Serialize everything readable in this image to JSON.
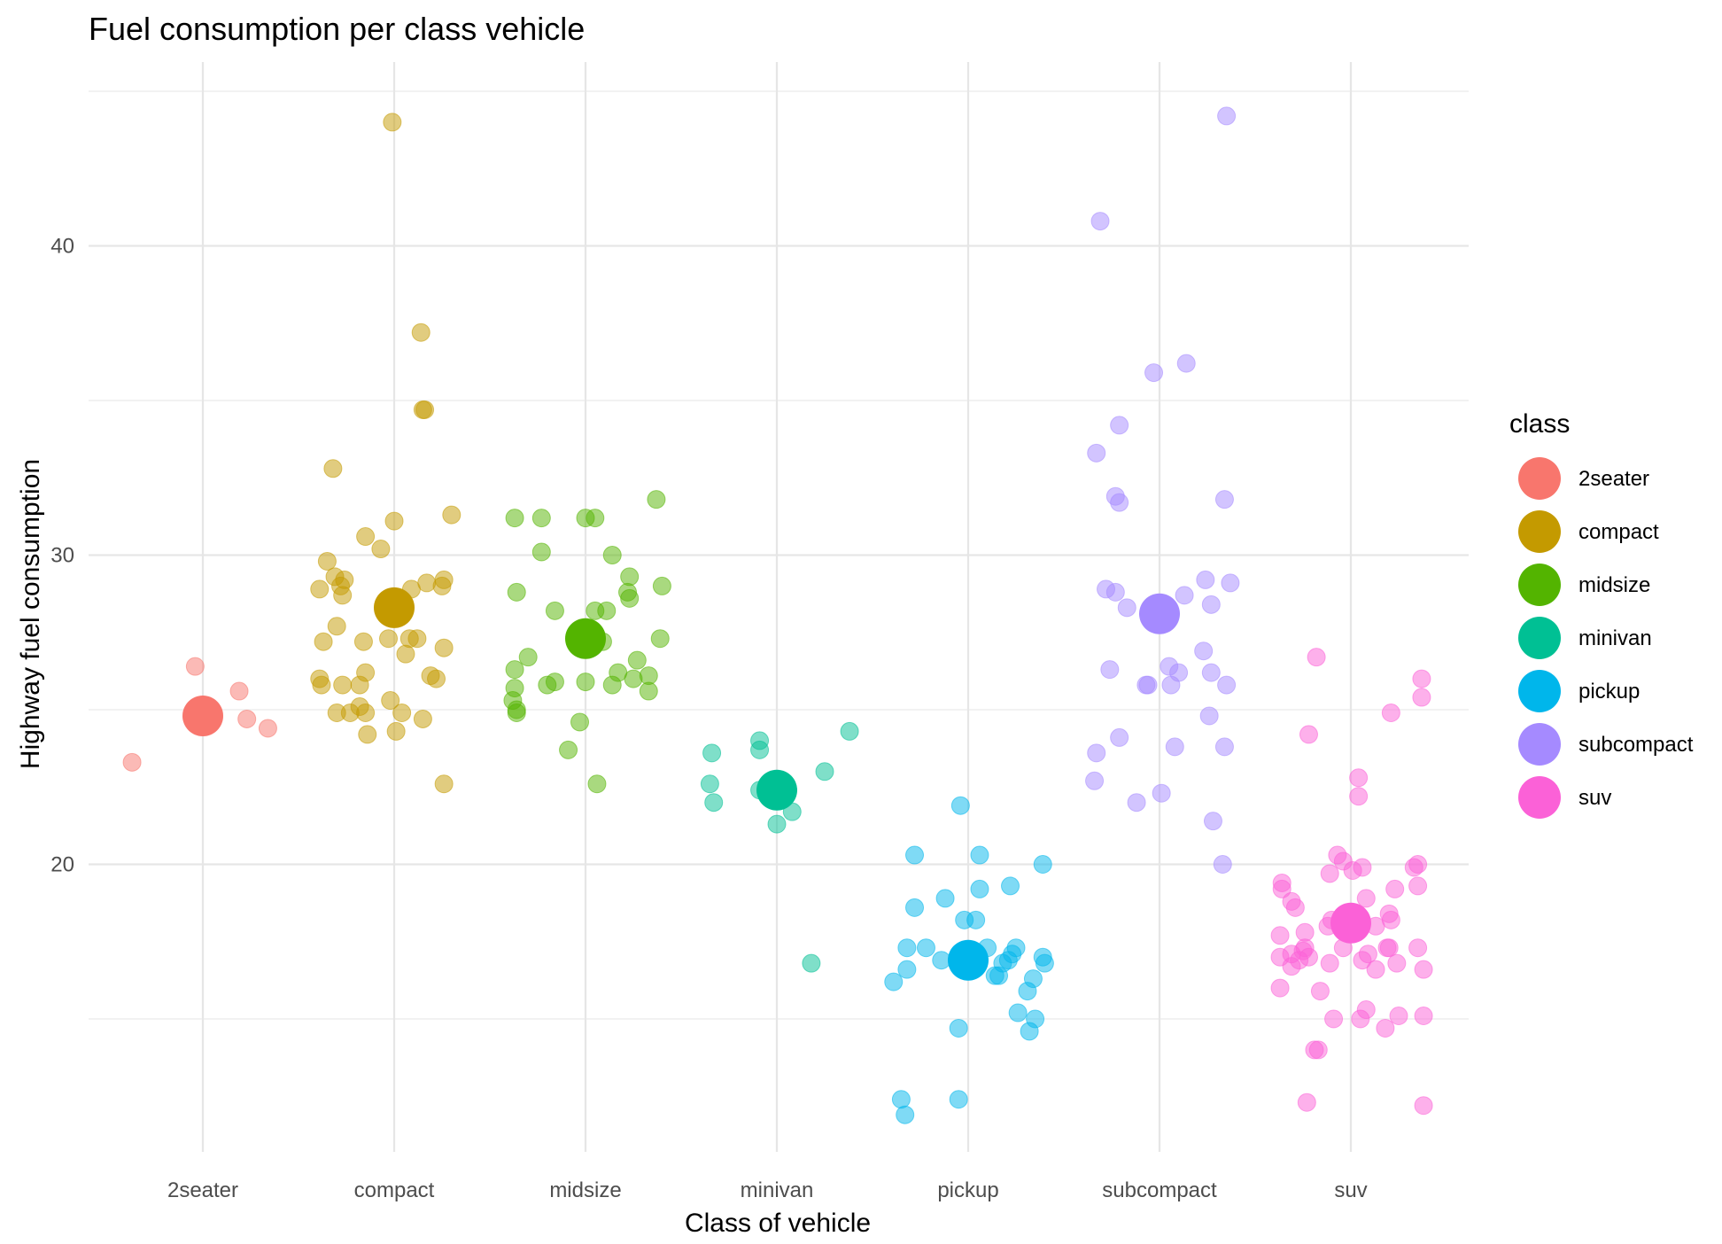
{
  "chart_data": {
    "type": "scatter",
    "title": "Fuel consumption per class vehicle",
    "xlabel": "Class of vehicle",
    "ylabel": "Highway fuel consumption",
    "categories": [
      "2seater",
      "compact",
      "midsize",
      "minivan",
      "pickup",
      "subcompact",
      "suv"
    ],
    "y_ticks": [
      20,
      30,
      40
    ],
    "ylim": [
      11,
      45
    ],
    "grid": true,
    "legend": {
      "title": "class",
      "placement": "right",
      "entries": [
        "2seater",
        "compact",
        "midsize",
        "minivan",
        "pickup",
        "subcompact",
        "suv"
      ]
    },
    "colors": {
      "2seater": "#F8766D",
      "compact": "#C49A00",
      "midsize": "#53B400",
      "minivan": "#00C094",
      "pickup": "#00B6EB",
      "subcompact": "#A58AFF",
      "suv": "#FB61D7"
    },
    "means": {
      "2seater": 24.8,
      "compact": 28.3,
      "midsize": 27.3,
      "minivan": 22.4,
      "pickup": 16.9,
      "subcompact": 28.1,
      "suv": 18.1
    },
    "points": {
      "2seater": [
        {
          "x": -0.37,
          "y": 23.3
        },
        {
          "x": -0.04,
          "y": 26.4
        },
        {
          "x": 0.19,
          "y": 25.6
        },
        {
          "x": 0.23,
          "y": 24.7
        },
        {
          "x": 0.34,
          "y": 24.4
        }
      ],
      "compact": [
        {
          "x": -0.01,
          "y": 44.0
        },
        {
          "x": 0.14,
          "y": 37.2
        },
        {
          "x": 0.15,
          "y": 34.7
        },
        {
          "x": 0.16,
          "y": 34.7
        },
        {
          "x": -0.32,
          "y": 32.8
        },
        {
          "x": 0.3,
          "y": 31.3
        },
        {
          "x": 0.0,
          "y": 31.1
        },
        {
          "x": -0.15,
          "y": 30.6
        },
        {
          "x": -0.07,
          "y": 30.2
        },
        {
          "x": -0.35,
          "y": 29.8
        },
        {
          "x": -0.31,
          "y": 29.3
        },
        {
          "x": -0.26,
          "y": 29.2
        },
        {
          "x": 0.26,
          "y": 29.2
        },
        {
          "x": 0.17,
          "y": 29.1
        },
        {
          "x": -0.28,
          "y": 29.0
        },
        {
          "x": -0.39,
          "y": 28.9
        },
        {
          "x": 0.09,
          "y": 28.9
        },
        {
          "x": 0.25,
          "y": 29.0
        },
        {
          "x": -0.27,
          "y": 28.7
        },
        {
          "x": -0.3,
          "y": 27.7
        },
        {
          "x": -0.37,
          "y": 27.2
        },
        {
          "x": -0.16,
          "y": 27.2
        },
        {
          "x": -0.03,
          "y": 27.3
        },
        {
          "x": 0.08,
          "y": 27.3
        },
        {
          "x": 0.12,
          "y": 27.3
        },
        {
          "x": 0.26,
          "y": 27.0
        },
        {
          "x": 0.06,
          "y": 26.8
        },
        {
          "x": -0.15,
          "y": 26.2
        },
        {
          "x": 0.19,
          "y": 26.1
        },
        {
          "x": 0.22,
          "y": 26.0
        },
        {
          "x": -0.39,
          "y": 26.0
        },
        {
          "x": -0.38,
          "y": 25.8
        },
        {
          "x": -0.27,
          "y": 25.8
        },
        {
          "x": -0.18,
          "y": 25.8
        },
        {
          "x": -0.02,
          "y": 25.3
        },
        {
          "x": -0.18,
          "y": 25.1
        },
        {
          "x": -0.23,
          "y": 24.9
        },
        {
          "x": -0.3,
          "y": 24.9
        },
        {
          "x": -0.15,
          "y": 24.9
        },
        {
          "x": 0.04,
          "y": 24.9
        },
        {
          "x": 0.15,
          "y": 24.7
        },
        {
          "x": 0.01,
          "y": 24.3
        },
        {
          "x": -0.14,
          "y": 24.2
        },
        {
          "x": 0.26,
          "y": 22.6
        }
      ],
      "midsize": [
        {
          "x": 0.37,
          "y": 31.8
        },
        {
          "x": -0.37,
          "y": 31.2
        },
        {
          "x": -0.23,
          "y": 31.2
        },
        {
          "x": 0.0,
          "y": 31.2
        },
        {
          "x": 0.05,
          "y": 31.2
        },
        {
          "x": -0.23,
          "y": 30.1
        },
        {
          "x": 0.14,
          "y": 30.0
        },
        {
          "x": 0.23,
          "y": 29.3
        },
        {
          "x": 0.4,
          "y": 29.0
        },
        {
          "x": -0.36,
          "y": 28.8
        },
        {
          "x": 0.22,
          "y": 28.8
        },
        {
          "x": 0.23,
          "y": 28.6
        },
        {
          "x": -0.16,
          "y": 28.2
        },
        {
          "x": 0.05,
          "y": 28.2
        },
        {
          "x": 0.11,
          "y": 28.2
        },
        {
          "x": 0.39,
          "y": 27.3
        },
        {
          "x": 0.09,
          "y": 27.2
        },
        {
          "x": -0.3,
          "y": 26.7
        },
        {
          "x": 0.27,
          "y": 26.6
        },
        {
          "x": -0.37,
          "y": 26.3
        },
        {
          "x": 0.17,
          "y": 26.2
        },
        {
          "x": 0.33,
          "y": 26.1
        },
        {
          "x": 0.25,
          "y": 26.0
        },
        {
          "x": -0.16,
          "y": 25.9
        },
        {
          "x": -0.2,
          "y": 25.8
        },
        {
          "x": 0.0,
          "y": 25.9
        },
        {
          "x": 0.14,
          "y": 25.8
        },
        {
          "x": 0.33,
          "y": 25.6
        },
        {
          "x": -0.37,
          "y": 25.7
        },
        {
          "x": -0.38,
          "y": 25.3
        },
        {
          "x": -0.36,
          "y": 25.0
        },
        {
          "x": -0.36,
          "y": 24.9
        },
        {
          "x": -0.03,
          "y": 24.6
        },
        {
          "x": -0.09,
          "y": 23.7
        },
        {
          "x": 0.06,
          "y": 22.6
        }
      ],
      "minivan": [
        {
          "x": 0.38,
          "y": 24.3
        },
        {
          "x": -0.09,
          "y": 24.0
        },
        {
          "x": -0.09,
          "y": 23.7
        },
        {
          "x": -0.34,
          "y": 23.6
        },
        {
          "x": 0.25,
          "y": 23.0
        },
        {
          "x": -0.35,
          "y": 22.6
        },
        {
          "x": -0.09,
          "y": 22.4
        },
        {
          "x": -0.33,
          "y": 22.0
        },
        {
          "x": 0.08,
          "y": 21.7
        },
        {
          "x": 0.0,
          "y": 21.3
        },
        {
          "x": 0.18,
          "y": 16.8
        }
      ],
      "pickup": [
        {
          "x": -0.04,
          "y": 21.9
        },
        {
          "x": -0.28,
          "y": 20.3
        },
        {
          "x": 0.06,
          "y": 20.3
        },
        {
          "x": 0.39,
          "y": 20.0
        },
        {
          "x": 0.22,
          "y": 19.3
        },
        {
          "x": 0.06,
          "y": 19.2
        },
        {
          "x": -0.12,
          "y": 18.9
        },
        {
          "x": -0.28,
          "y": 18.6
        },
        {
          "x": -0.02,
          "y": 18.2
        },
        {
          "x": 0.04,
          "y": 18.2
        },
        {
          "x": -0.32,
          "y": 17.3
        },
        {
          "x": -0.22,
          "y": 17.3
        },
        {
          "x": 0.1,
          "y": 17.3
        },
        {
          "x": 0.25,
          "y": 17.3
        },
        {
          "x": 0.23,
          "y": 17.1
        },
        {
          "x": 0.39,
          "y": 17.0
        },
        {
          "x": -0.14,
          "y": 16.9
        },
        {
          "x": 0.18,
          "y": 16.8
        },
        {
          "x": 0.21,
          "y": 16.9
        },
        {
          "x": 0.4,
          "y": 16.8
        },
        {
          "x": -0.32,
          "y": 16.6
        },
        {
          "x": 0.34,
          "y": 16.3
        },
        {
          "x": 0.14,
          "y": 16.4
        },
        {
          "x": 0.16,
          "y": 16.4
        },
        {
          "x": -0.39,
          "y": 16.2
        },
        {
          "x": 0.31,
          "y": 15.9
        },
        {
          "x": 0.26,
          "y": 15.2
        },
        {
          "x": 0.35,
          "y": 15.0
        },
        {
          "x": -0.05,
          "y": 14.7
        },
        {
          "x": 0.32,
          "y": 14.6
        },
        {
          "x": -0.35,
          "y": 12.4
        },
        {
          "x": -0.05,
          "y": 12.4
        },
        {
          "x": -0.33,
          "y": 11.9
        }
      ],
      "subcompact": [
        {
          "x": 0.35,
          "y": 44.2
        },
        {
          "x": -0.31,
          "y": 40.8
        },
        {
          "x": 0.14,
          "y": 36.2
        },
        {
          "x": -0.03,
          "y": 35.9
        },
        {
          "x": -0.21,
          "y": 34.2
        },
        {
          "x": -0.33,
          "y": 33.3
        },
        {
          "x": -0.23,
          "y": 31.9
        },
        {
          "x": -0.21,
          "y": 31.7
        },
        {
          "x": 0.34,
          "y": 31.8
        },
        {
          "x": 0.24,
          "y": 29.2
        },
        {
          "x": 0.37,
          "y": 29.1
        },
        {
          "x": -0.28,
          "y": 28.9
        },
        {
          "x": -0.23,
          "y": 28.8
        },
        {
          "x": 0.13,
          "y": 28.7
        },
        {
          "x": -0.17,
          "y": 28.3
        },
        {
          "x": 0.27,
          "y": 28.4
        },
        {
          "x": 0.23,
          "y": 26.9
        },
        {
          "x": -0.26,
          "y": 26.3
        },
        {
          "x": 0.05,
          "y": 26.4
        },
        {
          "x": 0.1,
          "y": 26.2
        },
        {
          "x": 0.27,
          "y": 26.2
        },
        {
          "x": -0.07,
          "y": 25.8
        },
        {
          "x": -0.06,
          "y": 25.8
        },
        {
          "x": 0.06,
          "y": 25.8
        },
        {
          "x": 0.35,
          "y": 25.8
        },
        {
          "x": 0.26,
          "y": 24.8
        },
        {
          "x": -0.21,
          "y": 24.1
        },
        {
          "x": 0.34,
          "y": 23.8
        },
        {
          "x": 0.08,
          "y": 23.8
        },
        {
          "x": -0.33,
          "y": 23.6
        },
        {
          "x": -0.34,
          "y": 22.7
        },
        {
          "x": 0.01,
          "y": 22.3
        },
        {
          "x": -0.12,
          "y": 22.0
        },
        {
          "x": 0.28,
          "y": 21.4
        },
        {
          "x": 0.33,
          "y": 20.0
        }
      ],
      "suv": [
        {
          "x": -0.18,
          "y": 26.7
        },
        {
          "x": 0.37,
          "y": 26.0
        },
        {
          "x": 0.37,
          "y": 25.4
        },
        {
          "x": 0.21,
          "y": 24.9
        },
        {
          "x": -0.22,
          "y": 24.2
        },
        {
          "x": 0.04,
          "y": 22.8
        },
        {
          "x": 0.04,
          "y": 22.2
        },
        {
          "x": -0.07,
          "y": 20.3
        },
        {
          "x": -0.04,
          "y": 20.1
        },
        {
          "x": 0.35,
          "y": 20.0
        },
        {
          "x": 0.33,
          "y": 19.9
        },
        {
          "x": 0.06,
          "y": 19.9
        },
        {
          "x": 0.01,
          "y": 19.8
        },
        {
          "x": -0.11,
          "y": 19.7
        },
        {
          "x": -0.36,
          "y": 19.4
        },
        {
          "x": 0.35,
          "y": 19.3
        },
        {
          "x": -0.36,
          "y": 19.2
        },
        {
          "x": 0.23,
          "y": 19.2
        },
        {
          "x": 0.08,
          "y": 18.9
        },
        {
          "x": -0.31,
          "y": 18.8
        },
        {
          "x": -0.29,
          "y": 18.6
        },
        {
          "x": 0.2,
          "y": 18.4
        },
        {
          "x": 0.21,
          "y": 18.2
        },
        {
          "x": -0.1,
          "y": 18.2
        },
        {
          "x": -0.12,
          "y": 18.0
        },
        {
          "x": 0.13,
          "y": 18.0
        },
        {
          "x": -0.24,
          "y": 17.8
        },
        {
          "x": -0.37,
          "y": 17.7
        },
        {
          "x": 0.0,
          "y": 17.8
        },
        {
          "x": -0.25,
          "y": 17.2
        },
        {
          "x": -0.24,
          "y": 17.3
        },
        {
          "x": -0.04,
          "y": 17.3
        },
        {
          "x": 0.19,
          "y": 17.3
        },
        {
          "x": 0.2,
          "y": 17.3
        },
        {
          "x": 0.35,
          "y": 17.3
        },
        {
          "x": -0.31,
          "y": 17.1
        },
        {
          "x": -0.22,
          "y": 17.0
        },
        {
          "x": 0.09,
          "y": 17.1
        },
        {
          "x": -0.37,
          "y": 17.0
        },
        {
          "x": -0.27,
          "y": 16.9
        },
        {
          "x": 0.06,
          "y": 16.9
        },
        {
          "x": -0.11,
          "y": 16.8
        },
        {
          "x": 0.24,
          "y": 16.8
        },
        {
          "x": -0.31,
          "y": 16.7
        },
        {
          "x": 0.13,
          "y": 16.6
        },
        {
          "x": 0.38,
          "y": 16.6
        },
        {
          "x": -0.37,
          "y": 16.0
        },
        {
          "x": -0.16,
          "y": 15.9
        },
        {
          "x": 0.08,
          "y": 15.3
        },
        {
          "x": 0.25,
          "y": 15.1
        },
        {
          "x": 0.38,
          "y": 15.1
        },
        {
          "x": -0.09,
          "y": 15.0
        },
        {
          "x": 0.05,
          "y": 15.0
        },
        {
          "x": 0.18,
          "y": 14.7
        },
        {
          "x": -0.19,
          "y": 14.0
        },
        {
          "x": -0.17,
          "y": 14.0
        },
        {
          "x": -0.23,
          "y": 12.3
        },
        {
          "x": 0.38,
          "y": 12.2
        }
      ]
    }
  }
}
